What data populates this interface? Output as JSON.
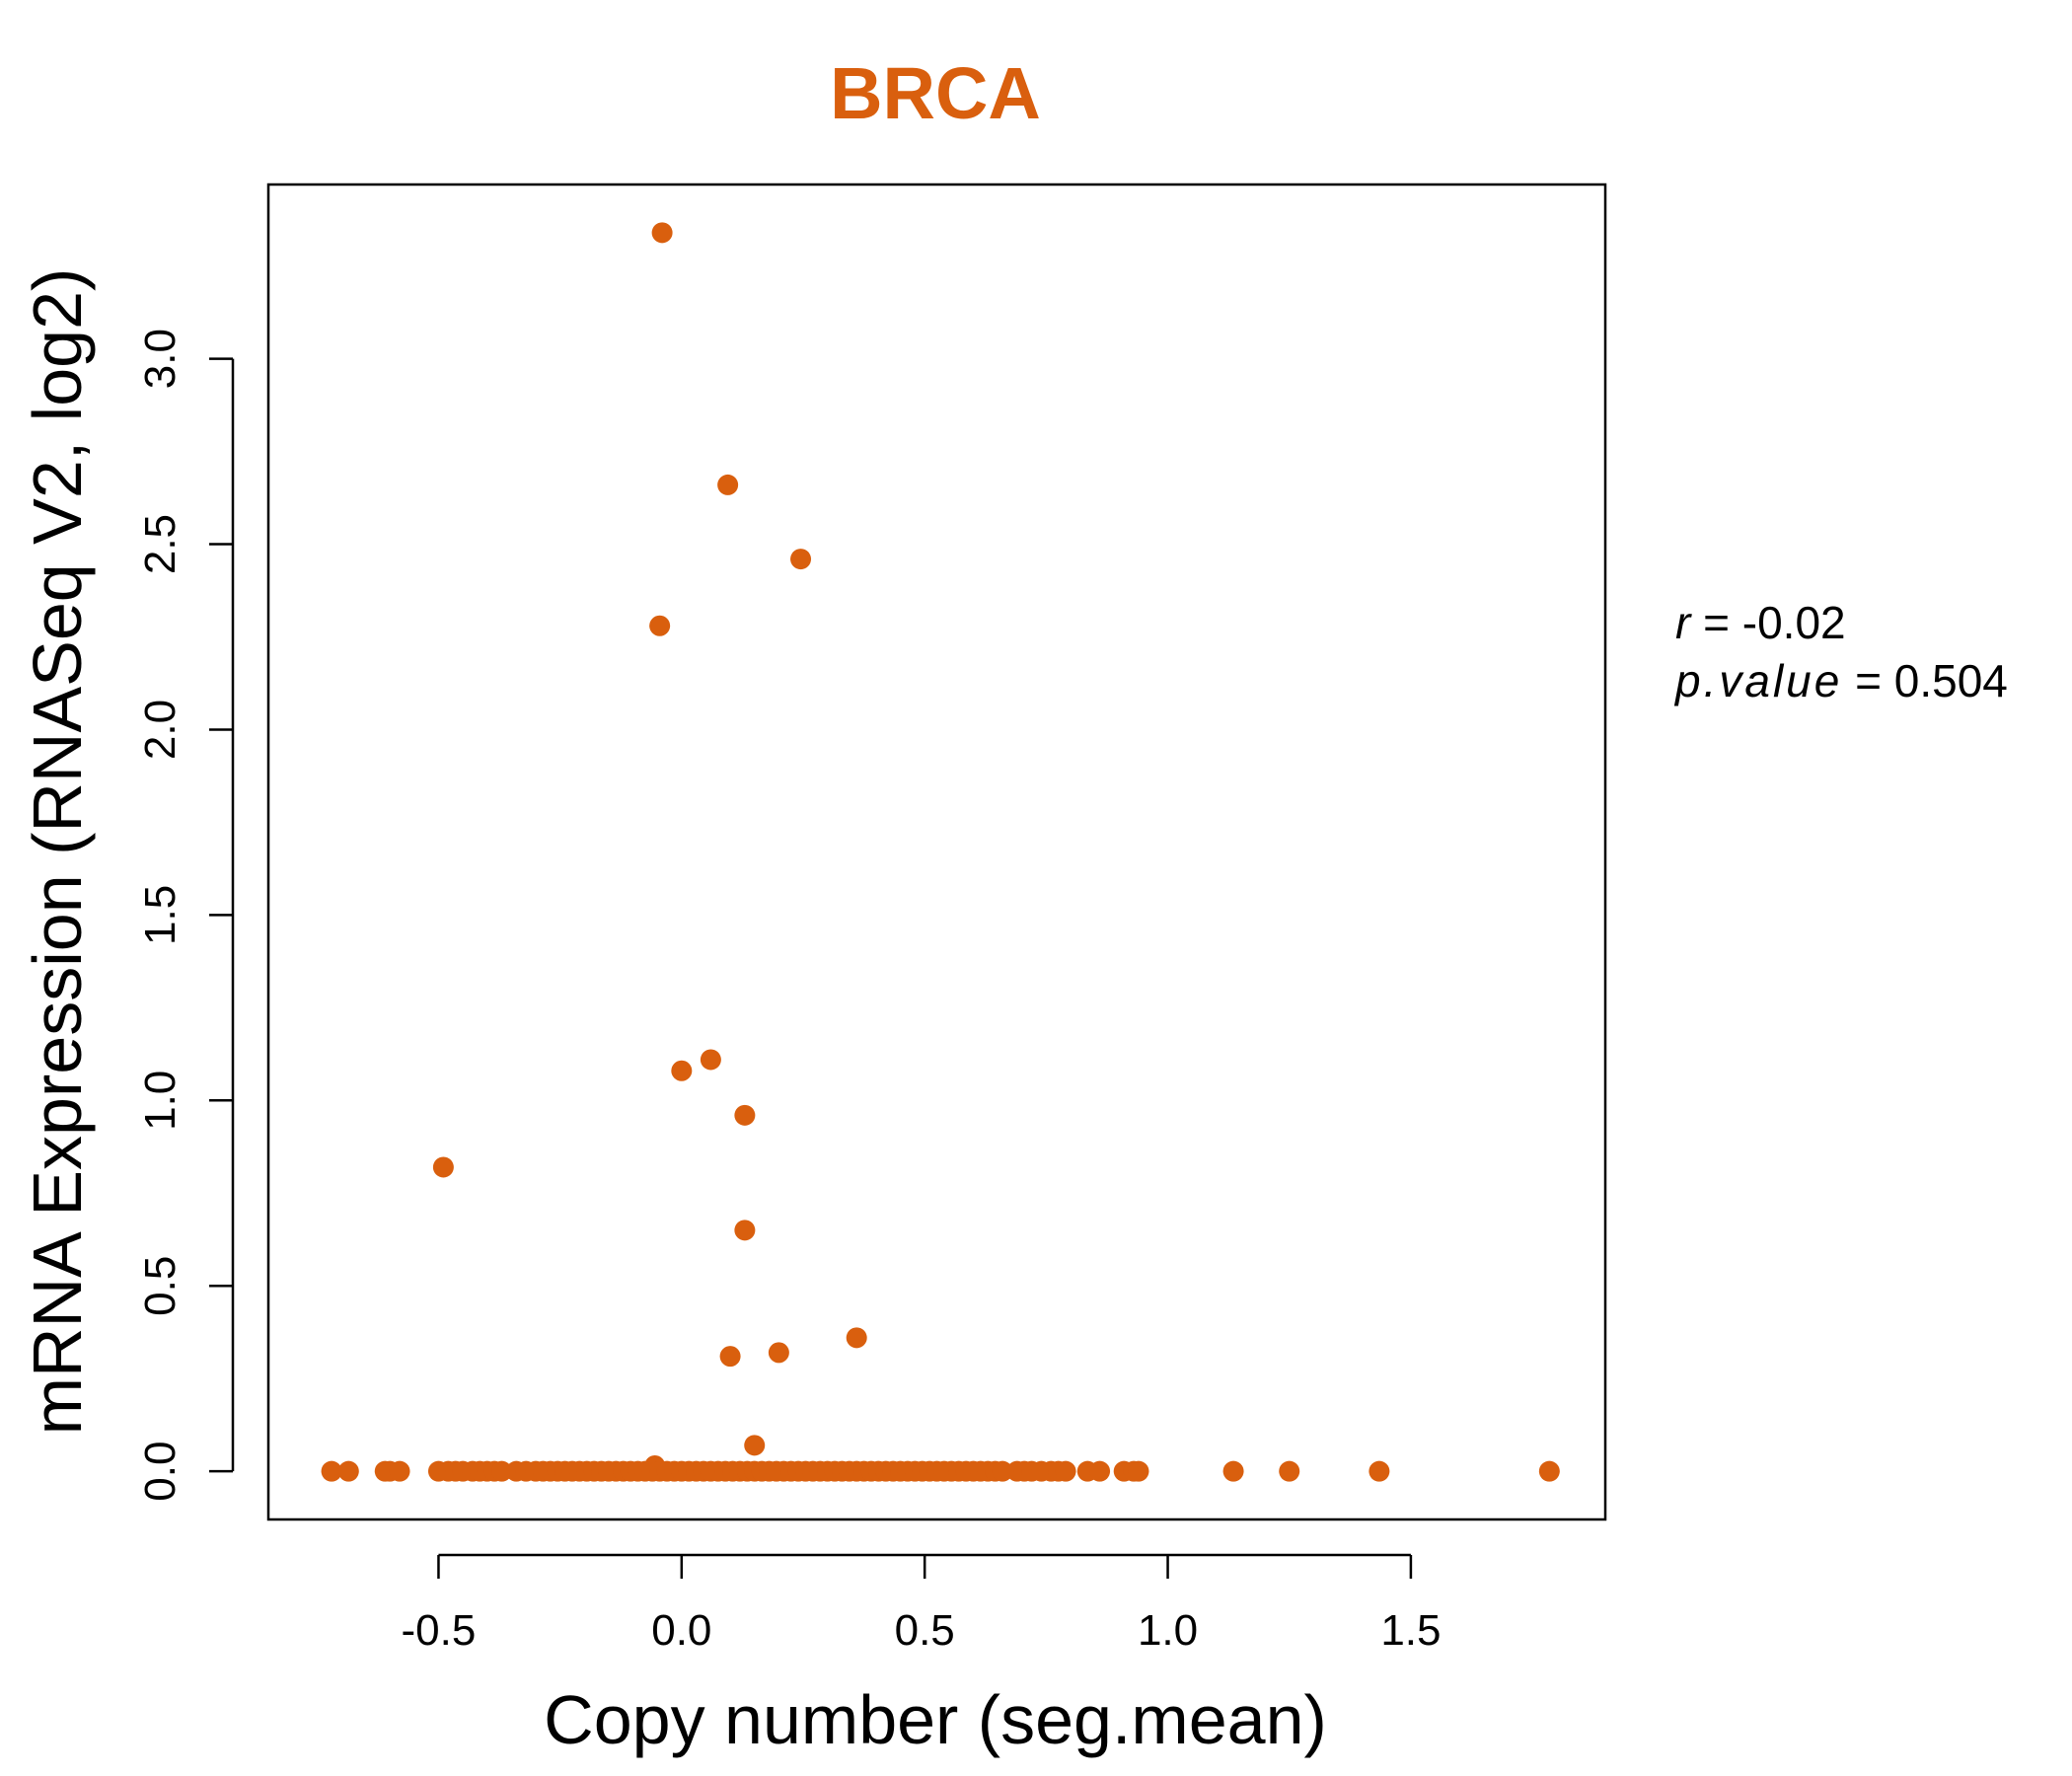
{
  "chart_data": {
    "type": "scatter",
    "title": "BRCA",
    "xlabel": "Copy number (seg.mean)",
    "ylabel": "mRNA Expression (RNASeq V2, log2)",
    "xlim": [
      -0.85,
      1.9
    ],
    "ylim": [
      -0.13,
      3.47
    ],
    "x_ticks": [
      -0.5,
      0.0,
      0.5,
      1.0,
      1.5
    ],
    "x_tick_labels": [
      "-0.5",
      "0.0",
      "0.5",
      "1.0",
      "1.5"
    ],
    "y_ticks": [
      0.0,
      0.5,
      1.0,
      1.5,
      2.0,
      2.5,
      3.0
    ],
    "y_tick_labels": [
      "0.0",
      "0.5",
      "1.0",
      "1.5",
      "2.0",
      "2.5",
      "3.0"
    ],
    "grid": false,
    "point_color": "#D95F0E",
    "title_color": "#D95F0E",
    "annotation": {
      "r_label": "r",
      "r_value": "-0.02",
      "p_label": "p.value",
      "p_value": "0.504"
    },
    "points": [
      {
        "x": -0.04,
        "y": 3.34
      },
      {
        "x": 0.095,
        "y": 2.66
      },
      {
        "x": 0.245,
        "y": 2.46
      },
      {
        "x": -0.045,
        "y": 2.28
      },
      {
        "x": 0.06,
        "y": 1.11
      },
      {
        "x": 0.0,
        "y": 1.08
      },
      {
        "x": 0.13,
        "y": 0.96
      },
      {
        "x": -0.49,
        "y": 0.82
      },
      {
        "x": 0.13,
        "y": 0.65
      },
      {
        "x": 0.36,
        "y": 0.36
      },
      {
        "x": 0.2,
        "y": 0.32
      },
      {
        "x": 0.1,
        "y": 0.31
      },
      {
        "x": 0.15,
        "y": 0.07
      },
      {
        "x": -0.055,
        "y": 0.015
      },
      {
        "x": -0.72,
        "y": 0
      },
      {
        "x": -0.685,
        "y": 0
      },
      {
        "x": -0.61,
        "y": 0
      },
      {
        "x": -0.6,
        "y": 0
      },
      {
        "x": -0.58,
        "y": 0
      },
      {
        "x": -0.5,
        "y": 0
      },
      {
        "x": -0.48,
        "y": 0
      },
      {
        "x": -0.465,
        "y": 0
      },
      {
        "x": -0.45,
        "y": 0
      },
      {
        "x": -0.43,
        "y": 0
      },
      {
        "x": -0.415,
        "y": 0
      },
      {
        "x": -0.4,
        "y": 0
      },
      {
        "x": -0.385,
        "y": 0
      },
      {
        "x": -0.37,
        "y": 0
      },
      {
        "x": -0.34,
        "y": 0
      },
      {
        "x": -0.32,
        "y": 0
      },
      {
        "x": -0.3,
        "y": 0
      },
      {
        "x": -0.285,
        "y": 0
      },
      {
        "x": -0.27,
        "y": 0
      },
      {
        "x": -0.255,
        "y": 0
      },
      {
        "x": -0.24,
        "y": 0
      },
      {
        "x": -0.225,
        "y": 0
      },
      {
        "x": -0.21,
        "y": 0
      },
      {
        "x": -0.195,
        "y": 0
      },
      {
        "x": -0.18,
        "y": 0
      },
      {
        "x": -0.165,
        "y": 0
      },
      {
        "x": -0.15,
        "y": 0
      },
      {
        "x": -0.135,
        "y": 0
      },
      {
        "x": -0.12,
        "y": 0
      },
      {
        "x": -0.105,
        "y": 0
      },
      {
        "x": -0.09,
        "y": 0
      },
      {
        "x": -0.075,
        "y": 0
      },
      {
        "x": -0.06,
        "y": 0
      },
      {
        "x": -0.045,
        "y": 0
      },
      {
        "x": -0.03,
        "y": 0
      },
      {
        "x": -0.015,
        "y": 0
      },
      {
        "x": 0.0,
        "y": 0
      },
      {
        "x": 0.015,
        "y": 0
      },
      {
        "x": 0.03,
        "y": 0
      },
      {
        "x": 0.045,
        "y": 0
      },
      {
        "x": 0.06,
        "y": 0
      },
      {
        "x": 0.075,
        "y": 0
      },
      {
        "x": 0.09,
        "y": 0
      },
      {
        "x": 0.105,
        "y": 0
      },
      {
        "x": 0.12,
        "y": 0
      },
      {
        "x": 0.135,
        "y": 0
      },
      {
        "x": 0.15,
        "y": 0
      },
      {
        "x": 0.165,
        "y": 0
      },
      {
        "x": 0.18,
        "y": 0
      },
      {
        "x": 0.195,
        "y": 0
      },
      {
        "x": 0.21,
        "y": 0
      },
      {
        "x": 0.225,
        "y": 0
      },
      {
        "x": 0.24,
        "y": 0
      },
      {
        "x": 0.255,
        "y": 0
      },
      {
        "x": 0.27,
        "y": 0
      },
      {
        "x": 0.285,
        "y": 0
      },
      {
        "x": 0.3,
        "y": 0
      },
      {
        "x": 0.315,
        "y": 0
      },
      {
        "x": 0.33,
        "y": 0
      },
      {
        "x": 0.345,
        "y": 0
      },
      {
        "x": 0.36,
        "y": 0
      },
      {
        "x": 0.375,
        "y": 0
      },
      {
        "x": 0.39,
        "y": 0
      },
      {
        "x": 0.405,
        "y": 0
      },
      {
        "x": 0.42,
        "y": 0
      },
      {
        "x": 0.435,
        "y": 0
      },
      {
        "x": 0.45,
        "y": 0
      },
      {
        "x": 0.465,
        "y": 0
      },
      {
        "x": 0.48,
        "y": 0
      },
      {
        "x": 0.495,
        "y": 0
      },
      {
        "x": 0.51,
        "y": 0
      },
      {
        "x": 0.525,
        "y": 0
      },
      {
        "x": 0.54,
        "y": 0
      },
      {
        "x": 0.555,
        "y": 0
      },
      {
        "x": 0.57,
        "y": 0
      },
      {
        "x": 0.585,
        "y": 0
      },
      {
        "x": 0.6,
        "y": 0
      },
      {
        "x": 0.615,
        "y": 0
      },
      {
        "x": 0.63,
        "y": 0
      },
      {
        "x": 0.645,
        "y": 0
      },
      {
        "x": 0.66,
        "y": 0
      },
      {
        "x": 0.69,
        "y": 0
      },
      {
        "x": 0.705,
        "y": 0
      },
      {
        "x": 0.72,
        "y": 0
      },
      {
        "x": 0.74,
        "y": 0
      },
      {
        "x": 0.76,
        "y": 0
      },
      {
        "x": 0.775,
        "y": 0
      },
      {
        "x": 0.79,
        "y": 0
      },
      {
        "x": 0.835,
        "y": 0
      },
      {
        "x": 0.86,
        "y": 0
      },
      {
        "x": 0.91,
        "y": 0
      },
      {
        "x": 0.93,
        "y": 0
      },
      {
        "x": 0.94,
        "y": 0
      },
      {
        "x": 1.135,
        "y": 0
      },
      {
        "x": 1.25,
        "y": 0
      },
      {
        "x": 1.435,
        "y": 0
      },
      {
        "x": 1.785,
        "y": 0
      }
    ]
  }
}
